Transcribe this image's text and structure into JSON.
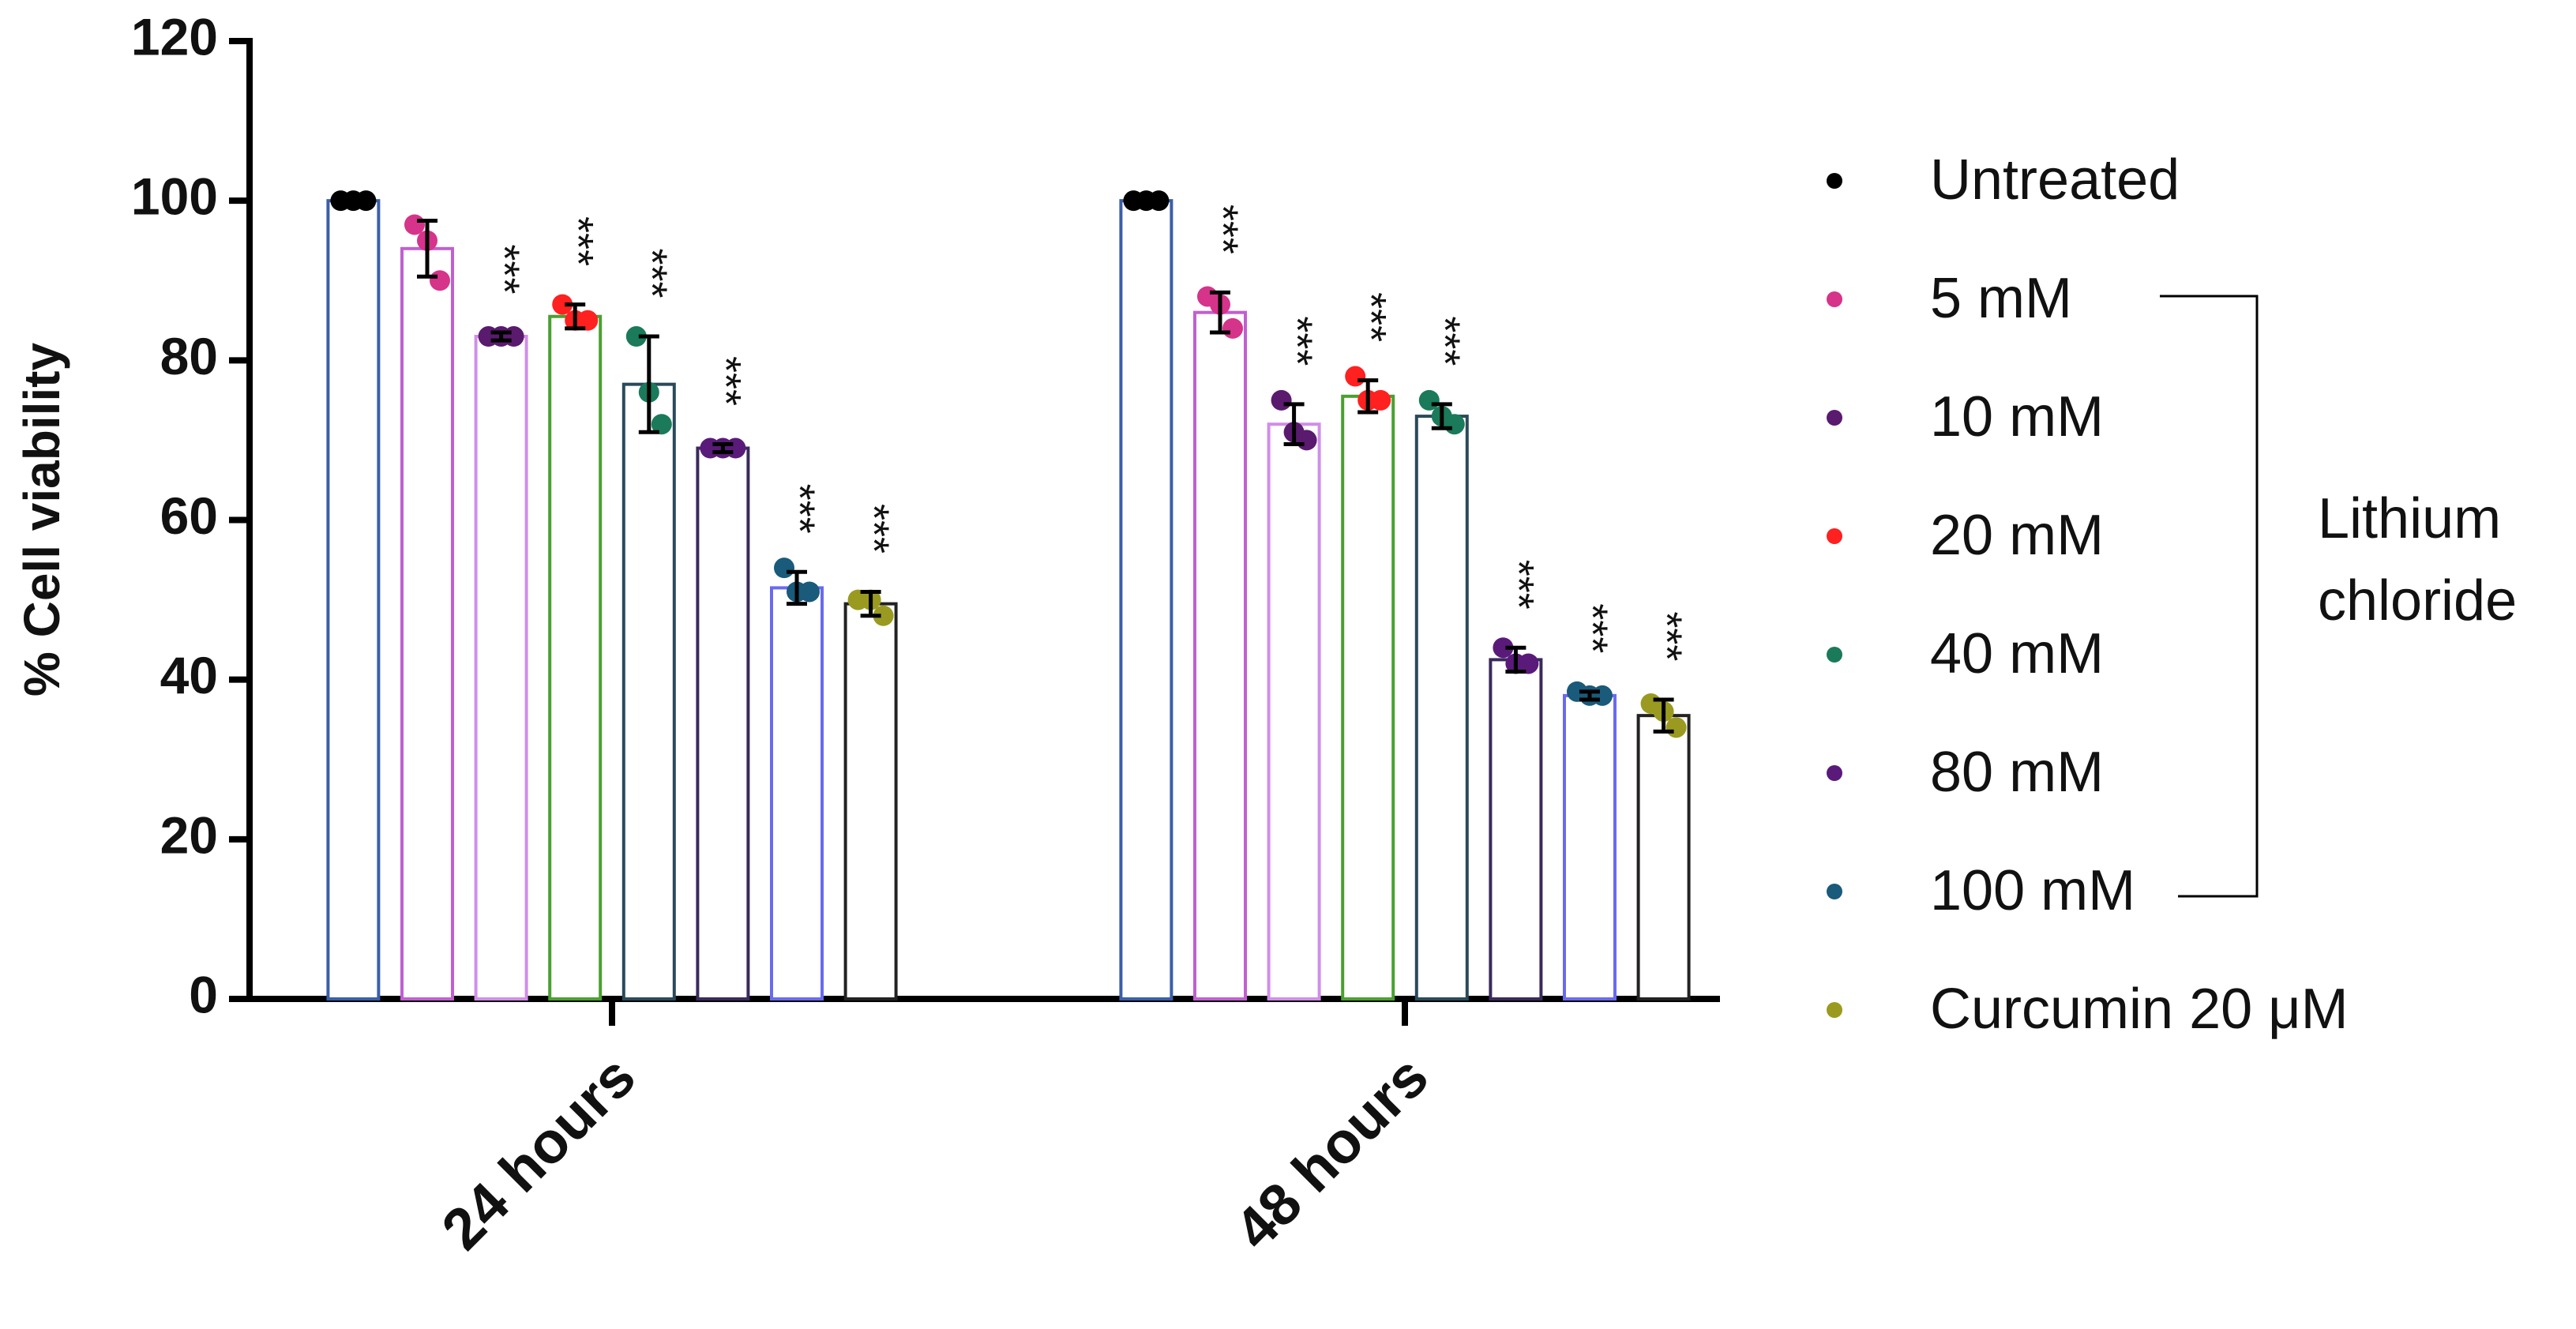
{
  "chart_data": {
    "type": "bar",
    "y_label": "% Cell viability",
    "categories": [
      "24 hours",
      "48 hours"
    ],
    "ylim": [
      0,
      120
    ],
    "yticks": [
      0,
      20,
      40,
      60,
      80,
      100,
      120
    ],
    "grid": false,
    "legend": "right",
    "legend_bracket_label": [
      "Lithium",
      "chloride"
    ],
    "series": [
      {
        "name": "Untreated",
        "color": "#000000",
        "edge_color": "#3b5ea8",
        "values": [
          100,
          100
        ],
        "errors": [
          0,
          0
        ],
        "points": [
          [
            100,
            100,
            100
          ],
          [
            100,
            100,
            100
          ]
        ],
        "annotations": [
          null,
          null
        ]
      },
      {
        "name": "5 mM",
        "color": "#d6338a",
        "edge_color": "#c060d0",
        "values": [
          94,
          86
        ],
        "errors": [
          3.5,
          2.5
        ],
        "points": [
          [
            97,
            95,
            90
          ],
          [
            88,
            87,
            84
          ]
        ],
        "annotations": [
          null,
          "***"
        ]
      },
      {
        "name": "10 mM",
        "color": "#5a1a6e",
        "edge_color": "#d08ee8",
        "values": [
          83,
          72
        ],
        "errors": [
          0.5,
          2.5
        ],
        "points": [
          [
            83,
            83,
            83
          ],
          [
            75,
            71,
            70
          ]
        ],
        "annotations": [
          "***",
          "***"
        ]
      },
      {
        "name": "20 mM",
        "color": "#ff2020",
        "edge_color": "#4aa030",
        "values": [
          85.5,
          75.5
        ],
        "errors": [
          1.5,
          2
        ],
        "points": [
          [
            87,
            85,
            85
          ],
          [
            78,
            75,
            75
          ]
        ],
        "annotations": [
          "***",
          "***"
        ]
      },
      {
        "name": "40 mM",
        "color": "#1a7a5a",
        "edge_color": "#2a4a5a",
        "values": [
          77,
          73
        ],
        "errors": [
          6,
          1.5
        ],
        "points": [
          [
            83,
            76,
            72
          ],
          [
            75,
            73,
            72
          ]
        ],
        "annotations": [
          "***",
          "***"
        ]
      },
      {
        "name": "80 mM",
        "color": "#5a1a7a",
        "edge_color": "#3a2a5a",
        "values": [
          69,
          42.5
        ],
        "errors": [
          0.5,
          1.5
        ],
        "points": [
          [
            69,
            69,
            69
          ],
          [
            44,
            42,
            42
          ]
        ],
        "annotations": [
          "***",
          "***"
        ]
      },
      {
        "name": "100 mM",
        "color": "#1a5a7a",
        "edge_color": "#6a6af0",
        "values": [
          51.5,
          38
        ],
        "errors": [
          2,
          0.5
        ],
        "points": [
          [
            54,
            51,
            51
          ],
          [
            38.5,
            38,
            38
          ]
        ],
        "annotations": [
          "***",
          "***"
        ]
      },
      {
        "name": "Curcumin 20 μM",
        "color": "#9a9a20",
        "edge_color": "#222222",
        "values": [
          49.5,
          35.5
        ],
        "errors": [
          1.5,
          2
        ],
        "points": [
          [
            50,
            50,
            48
          ],
          [
            37,
            36,
            34
          ]
        ],
        "annotations": [
          "***",
          "***"
        ]
      }
    ]
  }
}
